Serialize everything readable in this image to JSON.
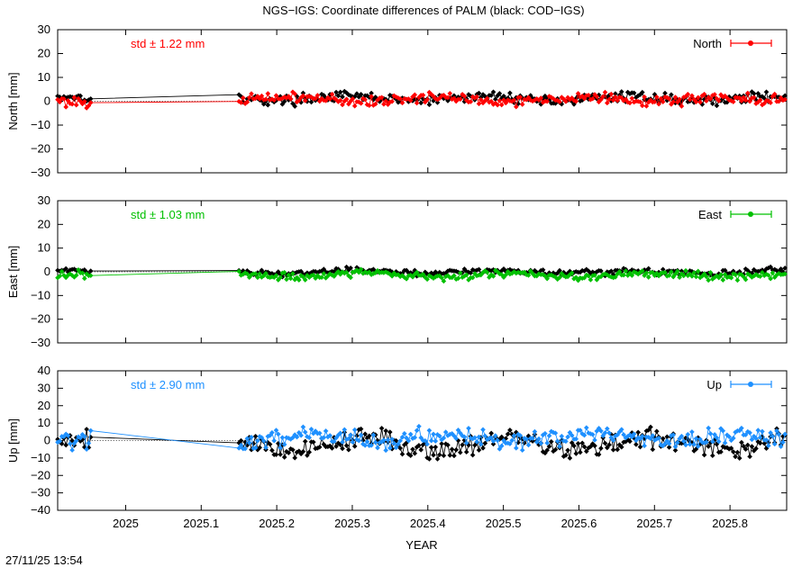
{
  "title": "NGS−IGS: Coordinate differences of PALM (black: COD−IGS)",
  "footer_timestamp": "27/11/25 13:54",
  "chart_data": {
    "type": "line",
    "title": "NGS−IGS: Coordinate differences of PALM (black: COD−IGS)",
    "xlabel": "YEAR",
    "xlim": [
      2024.91,
      2025.875
    ],
    "x_ticks": [
      2025,
      2025.1,
      2025.2,
      2025.3,
      2025.4,
      2025.5,
      2025.6,
      2025.7,
      2025.8
    ],
    "x_tick_labels": [
      "2025",
      "2025.1",
      "2025.2",
      "2025.3",
      "2025.4",
      "2025.5",
      "2025.6",
      "2025.7",
      "2025.8"
    ],
    "grid": false,
    "panels": [
      {
        "key": "north",
        "ylabel": "North [mm]",
        "ylim": [
          -30,
          30
        ],
        "y_ticks": [
          -30,
          -20,
          -10,
          0,
          10,
          20,
          30
        ],
        "y_tick_labels": [
          "−30",
          "−20",
          "−10",
          "0",
          "10",
          "20",
          "30"
        ],
        "std_label": "std ± 1.22 mm",
        "legend": "North",
        "legend_position": "top-right",
        "color": "#ff0000",
        "black_color": "#000000",
        "segments": [
          {
            "start": 2024.91,
            "end": 2024.955
          },
          {
            "start": 2025.15,
            "end": 2025.875
          }
        ],
        "ngs": {
          "mean": 0.8,
          "amp": 0.9,
          "noise": 1.3
        },
        "cod": {
          "mean": 1.2,
          "amp": 0.9,
          "noise": 1.2
        }
      },
      {
        "key": "east",
        "ylabel": "East [mm]",
        "ylim": [
          -30,
          30
        ],
        "y_ticks": [
          -30,
          -20,
          -10,
          0,
          10,
          20,
          30
        ],
        "y_tick_labels": [
          "−30",
          "−20",
          "−10",
          "0",
          "10",
          "20",
          "30"
        ],
        "std_label": "std ± 1.03 mm",
        "legend": "East",
        "legend_position": "top-right",
        "color": "#00c000",
        "black_color": "#000000",
        "segments": [
          {
            "start": 2024.91,
            "end": 2024.955
          },
          {
            "start": 2025.15,
            "end": 2025.875
          }
        ],
        "ngs": {
          "mean": -1.5,
          "amp": 0.8,
          "noise": 1.0
        },
        "cod": {
          "mean": 0.0,
          "amp": 0.6,
          "noise": 0.8
        }
      },
      {
        "key": "up",
        "ylabel": "Up [mm]",
        "ylim": [
          -40,
          40
        ],
        "y_ticks": [
          -40,
          -30,
          -20,
          -10,
          0,
          10,
          20,
          30,
          40
        ],
        "y_tick_labels": [
          "−40",
          "−30",
          "−20",
          "−10",
          "0",
          "10",
          "20",
          "30",
          "40"
        ],
        "std_label": "std ± 2.90 mm",
        "legend": "Up",
        "legend_position": "top-right",
        "color": "#1e90ff",
        "black_color": "#000000",
        "segments": [
          {
            "start": 2024.91,
            "end": 2024.955
          },
          {
            "start": 2025.15,
            "end": 2025.875
          }
        ],
        "ngs": {
          "mean": 1.5,
          "amp": 2.0,
          "noise": 3.0
        },
        "cod": {
          "mean": -2.0,
          "amp": 3.5,
          "noise": 3.5
        }
      }
    ]
  }
}
